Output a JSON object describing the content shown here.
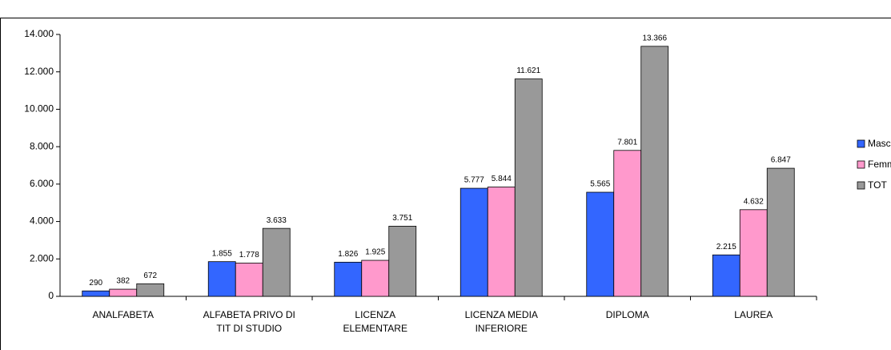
{
  "chart_data": {
    "type": "bar",
    "categories": [
      "ANALFABETA",
      "ALFABETA PRIVO DI\nTIT DI STUDIO",
      "LICENZA\nELEMENTARE",
      "LICENZA MEDIA\nINFERIORE",
      "DIPLOMA",
      "LAUREA"
    ],
    "series": [
      {
        "name": "Maschi",
        "color": "#3366ff",
        "values": [
          290,
          1855,
          1826,
          5777,
          5565,
          2215
        ],
        "value_labels": [
          "290",
          "1.855",
          "1.826",
          "5.777",
          "5.565",
          "2.215"
        ]
      },
      {
        "name": "Femmine",
        "color": "#ff99cc",
        "values": [
          382,
          1778,
          1925,
          5844,
          7801,
          4632
        ],
        "value_labels": [
          "382",
          "1.778",
          "1.925",
          "5.844",
          "7.801",
          "4.632"
        ]
      },
      {
        "name": "TOT",
        "color": "#999999",
        "values": [
          672,
          3633,
          3751,
          11621,
          13366,
          6847
        ],
        "value_labels": [
          "672",
          "3.633",
          "3.751",
          "11.621",
          "13.366",
          "6.847"
        ]
      }
    ],
    "ylim": [
      0,
      14000
    ],
    "yticks": [
      0,
      {
        "value": 2000,
        "label": "2.000"
      },
      {
        "value": 4000,
        "label": "4.000"
      },
      {
        "value": 6000,
        "label": "6.000"
      },
      {
        "value": 8000,
        "label": "8.000"
      },
      {
        "value": 10000,
        "label": "10.000"
      },
      {
        "value": 12000,
        "label": "12.000"
      },
      {
        "value": 14000,
        "label": "14.000"
      }
    ],
    "grid": false,
    "legend": "right"
  }
}
